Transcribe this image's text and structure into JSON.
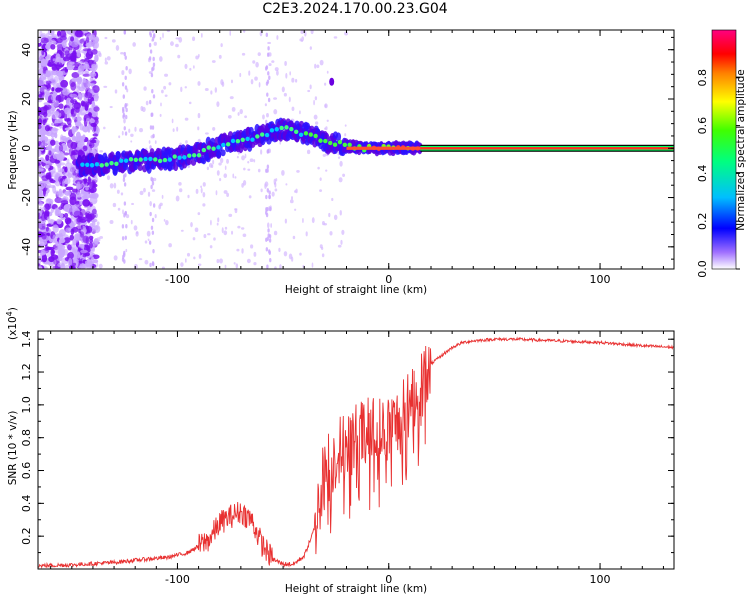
{
  "title": "C2E3.2024.170.00.23.G04",
  "chart_data": [
    {
      "type": "heatmap",
      "xlabel": "Height of straight line (km)",
      "ylabel": "Frequency (Hz)",
      "xlim": [
        -166,
        135
      ],
      "ylim": [
        -49,
        48
      ],
      "x_ticks": [
        -100,
        0,
        100
      ],
      "y_ticks": [
        -40,
        -20,
        0,
        20,
        40
      ],
      "colorbar": {
        "label": "Normalized spectral amplitude",
        "range": [
          0,
          1
        ],
        "ticks": [
          "0.0",
          "0.2",
          "0.4",
          "0.6",
          "0.8"
        ],
        "colors": [
          "#ffffff",
          "#7f00ff",
          "#0000ff",
          "#00bfff",
          "#00ff80",
          "#40ff00",
          "#ffff00",
          "#ff8000",
          "#ff0000",
          "#ff0080"
        ]
      },
      "ridge": [
        {
          "x": -145,
          "y": -7
        },
        {
          "x": -130,
          "y": -6
        },
        {
          "x": -115,
          "y": -5
        },
        {
          "x": -100,
          "y": -4
        },
        {
          "x": -90,
          "y": -2
        },
        {
          "x": -80,
          "y": 1
        },
        {
          "x": -70,
          "y": 3
        },
        {
          "x": -60,
          "y": 5
        },
        {
          "x": -50,
          "y": 8
        },
        {
          "x": -40,
          "y": 6
        },
        {
          "x": -30,
          "y": 3
        },
        {
          "x": -20,
          "y": 1
        },
        {
          "x": -10,
          "y": 0
        },
        {
          "x": 0,
          "y": 0
        },
        {
          "x": 10,
          "y": 0
        },
        {
          "x": 135,
          "y": 0
        }
      ]
    },
    {
      "type": "line",
      "xlabel": "Height of straight line (km)",
      "ylabel": "SNR (10 * v/v)",
      "y_multiplier_label": "(x10",
      "y_multiplier_exp": "4",
      "xlim": [
        -166,
        135
      ],
      "ylim": [
        0,
        14500
      ],
      "x_ticks": [
        -100,
        0,
        100
      ],
      "y_ticks": [
        2000,
        4000,
        6000,
        8000,
        10000,
        12000,
        14000
      ],
      "y_tick_labels": [
        "0.2",
        "0.4",
        "0.6",
        "0.8",
        "1.0",
        "1.2",
        "1.4"
      ],
      "color": "#e83030",
      "series": [
        {
          "x": [
            -166,
            -150,
            -130,
            -115,
            -105,
            -95,
            -85,
            -80,
            -75,
            -70,
            -65,
            -60,
            -55,
            -50,
            -45,
            -40,
            -35,
            -32,
            -30,
            -25,
            -20,
            -15,
            -10,
            -5,
            0,
            5,
            10,
            15,
            20,
            25,
            30,
            35,
            40,
            50,
            60,
            70,
            80,
            90,
            100,
            110,
            120,
            135
          ],
          "y": [
            200,
            250,
            400,
            600,
            700,
            1000,
            1800,
            2800,
            3200,
            3500,
            3000,
            1500,
            600,
            300,
            300,
            800,
            2500,
            5000,
            6000,
            7000,
            7500,
            8000,
            8300,
            8400,
            8500,
            9000,
            10000,
            11500,
            12500,
            13000,
            13500,
            13800,
            13900,
            14000,
            14000,
            13950,
            13900,
            13850,
            13800,
            13700,
            13600,
            13500
          ]
        }
      ]
    }
  ]
}
